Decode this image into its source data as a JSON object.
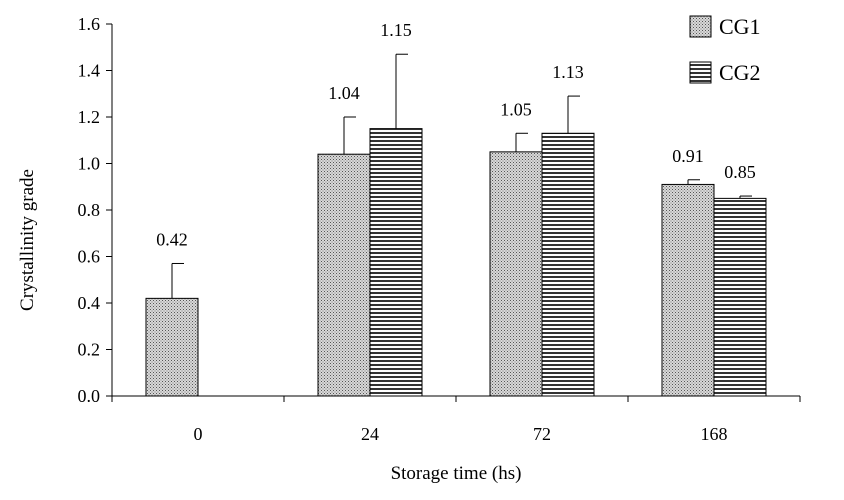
{
  "chart_data": {
    "type": "bar",
    "title": "",
    "xlabel": "Storage time (hs)",
    "ylabel": "Crystallinity grade",
    "categories": [
      "0",
      "24",
      "72",
      "168"
    ],
    "ylim": [
      0,
      1.6
    ],
    "yticks": [
      "0.0",
      "0.2",
      "0.4",
      "0.6",
      "0.8",
      "1.0",
      "1.2",
      "1.4",
      "1.6"
    ],
    "grid": false,
    "legend_position": "top-right",
    "series": [
      {
        "name": "CG1",
        "values": [
          0.42,
          1.04,
          1.05,
          0.91
        ],
        "errors": [
          0.15,
          0.16,
          0.08,
          0.02
        ],
        "labels": [
          "0.42",
          "1.04",
          "1.05",
          "0.91"
        ],
        "pattern": "dotted"
      },
      {
        "name": "CG2",
        "values": [
          0,
          1.15,
          1.13,
          0.85
        ],
        "errors": [
          0,
          0.32,
          0.16,
          0.01
        ],
        "labels": [
          "",
          "1.15",
          "1.13",
          "0.85"
        ],
        "pattern": "horizontal-lines"
      }
    ]
  }
}
